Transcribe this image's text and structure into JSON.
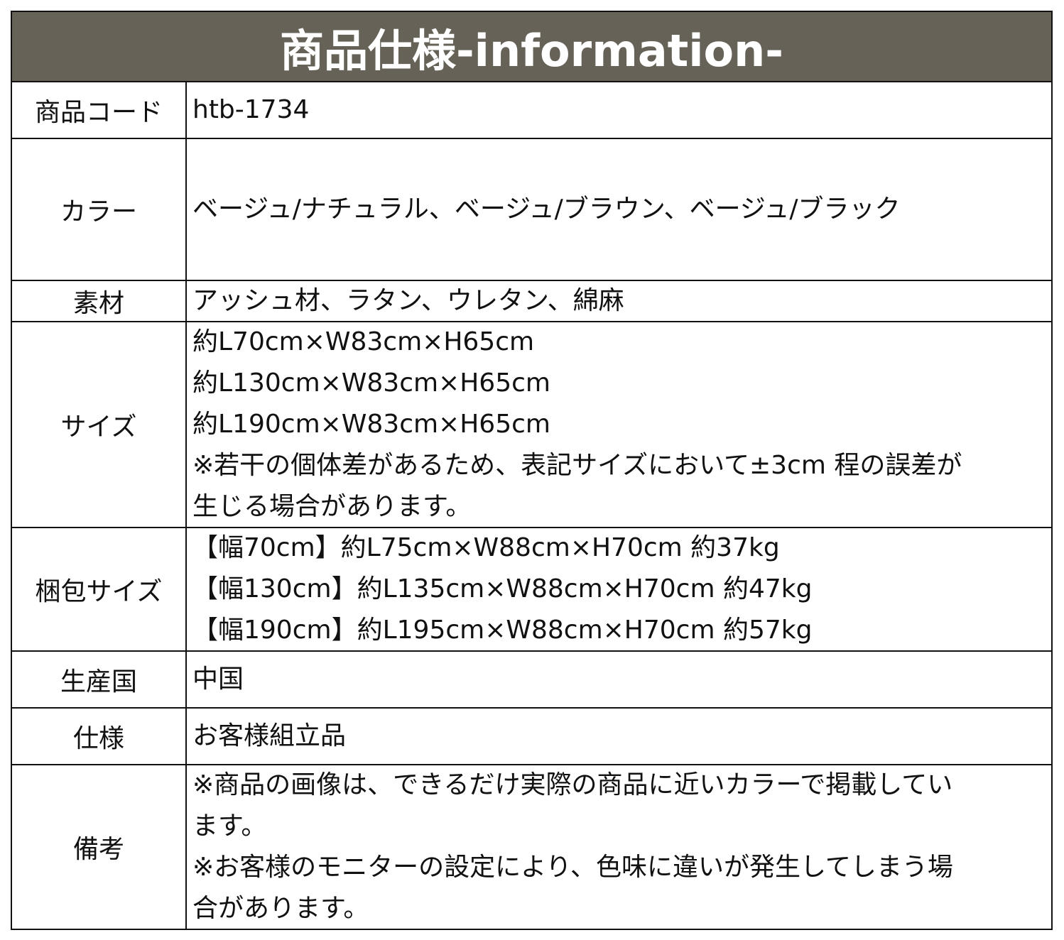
{
  "title": "商品仕様-information-",
  "header_color": "#666258",
  "rows": [
    {
      "label": "商品コード",
      "lines": [
        "htb-1734"
      ]
    },
    {
      "label": "カラー",
      "lines": [
        "ベージュ/ナチュラル、ベージュ/ブラウン、ベージュ/ブラック"
      ]
    },
    {
      "label": "素材",
      "lines": [
        "アッシュ材、ラタン、ウレタン、綿麻"
      ]
    },
    {
      "label": "サイズ",
      "lines": [
        "約L70cm×W83cm×H65cm",
        "約L130cm×W83cm×H65cm",
        "約L190cm×W83cm×H65cm",
        "※若干の個体差があるため、表記サイズにおいて±3cm 程の誤差が",
        "生じる場合があります。"
      ]
    },
    {
      "label": "梱包サイズ",
      "lines": [
        "【幅70cm】約L75cm×W88cm×H70cm 約37kg",
        "【幅130cm】約L135cm×W88cm×H70cm 約47kg",
        "【幅190cm】約L195cm×W88cm×H70cm 約57kg"
      ]
    },
    {
      "label": "生産国",
      "lines": [
        "中国"
      ]
    },
    {
      "label": "仕様",
      "lines": [
        "お客様組立品"
      ]
    },
    {
      "label": "備考",
      "lines": [
        "※商品の画像は、できるだけ実際の商品に近いカラーで掲載してい",
        "ます。",
        "※お客様のモニターの設定により、色味に違いが発生してしまう場",
        "合があります。"
      ]
    }
  ]
}
